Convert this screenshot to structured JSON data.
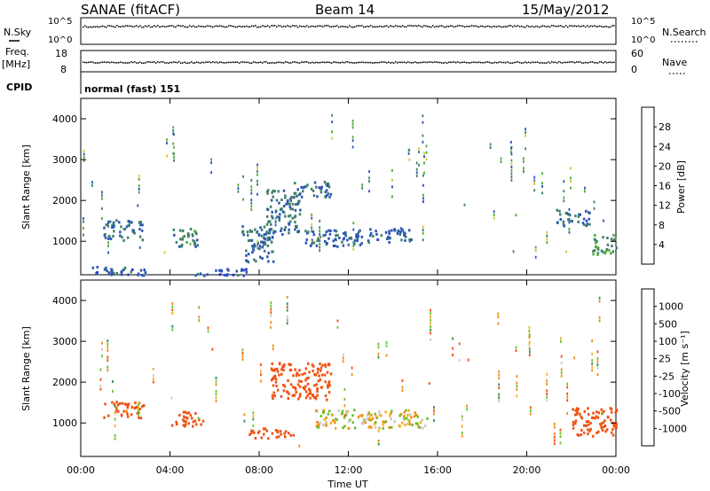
{
  "header": {
    "station": "SANAE (fitACF)",
    "beam": "Beam 14",
    "date": "15/May/2012"
  },
  "top_panels": {
    "nsky_label": "N.Sky",
    "nsky_ticks": [
      "10^5",
      "10^0"
    ],
    "nsearch_label": "N.Search",
    "nsearch_ticks": [
      "10^5",
      "10^0"
    ],
    "freq_label": "Freq.",
    "freq_unit": "[MHz]",
    "freq_ticks": [
      "18",
      "8"
    ],
    "nave_label": "Nave",
    "nave_ticks": [
      "60",
      "0"
    ],
    "cpid_label": "CPID",
    "cpid_value": "normal (fast) 151"
  },
  "colors": {
    "power": [
      "#1f2ad8",
      "#2a55b8",
      "#3f7f6a",
      "#4faa3a",
      "#d8c42a",
      "#f2a014",
      "#ef6a10",
      "#e23212"
    ],
    "velocity": [
      "#e01818",
      "#f05010",
      "#f28a10",
      "#f2b020",
      "#c8c8c8",
      "#c0c0c0",
      "#6cc030",
      "#3c8a48",
      "#3060b0",
      "#2030c0"
    ]
  },
  "chart_data": [
    {
      "type": "heatmap",
      "title": "",
      "ylabel": "Slant Range [km]",
      "xlabel": "",
      "xlim": [
        "00:00",
        "24:00"
      ],
      "ylim": [
        180,
        4500
      ],
      "yticks": [
        "1000",
        "2000",
        "3000",
        "4000"
      ],
      "xticks": [
        "00:00",
        "04:00",
        "08:00",
        "12:00",
        "16:00",
        "20:00",
        "00:00"
      ],
      "colorbar": {
        "label": "Power [dB]",
        "ticks": [
          "4",
          "8",
          "12",
          "16",
          "20",
          "24",
          "28"
        ],
        "range": [
          0,
          30
        ]
      },
      "echo_regions": [
        {
          "t0": 0.5,
          "t1": 3.0,
          "r0": 180,
          "r1": 400,
          "value": 6
        },
        {
          "t0": 1.0,
          "t1": 2.8,
          "r0": 1050,
          "r1": 1550,
          "value": 8
        },
        {
          "t0": 4.0,
          "t1": 5.2,
          "r0": 900,
          "r1": 1350,
          "value": 10
        },
        {
          "t0": 5.0,
          "t1": 7.5,
          "r0": 180,
          "r1": 350,
          "value": 6
        },
        {
          "t0": 7.2,
          "t1": 8.6,
          "r0": 500,
          "r1": 1400,
          "value": 8
        },
        {
          "t0": 8.3,
          "t1": 9.8,
          "r0": 1200,
          "r1": 2300,
          "value": 9
        },
        {
          "t0": 9.5,
          "t1": 11.2,
          "r0": 2100,
          "r1": 2500,
          "value": 8
        },
        {
          "t0": 10.0,
          "t1": 12.6,
          "r0": 900,
          "r1": 1300,
          "value": 7
        },
        {
          "t0": 12.3,
          "t1": 14.8,
          "r0": 1000,
          "r1": 1350,
          "value": 7
        },
        {
          "t0": 21.3,
          "t1": 22.8,
          "r0": 1400,
          "r1": 1800,
          "value": 8
        },
        {
          "t0": 22.8,
          "t1": 24.0,
          "r0": 700,
          "r1": 1200,
          "value": 12
        }
      ]
    },
    {
      "type": "heatmap",
      "title": "",
      "ylabel": "Slant Range [km]",
      "xlabel": "Time UT",
      "xlim": [
        "00:00",
        "24:00"
      ],
      "ylim": [
        180,
        4500
      ],
      "yticks": [
        "1000",
        "2000",
        "3000",
        "4000"
      ],
      "xticks": [
        "00:00",
        "04:00",
        "08:00",
        "12:00",
        "16:00",
        "20:00",
        "00:00"
      ],
      "colorbar": {
        "label": "Velocity [m s⁻¹]",
        "ticks": [
          "1000",
          "500",
          "100",
          "25",
          "-25",
          "-100",
          "-500",
          "-1000"
        ],
        "range": [
          -1000,
          1000
        ]
      },
      "echo_regions": [
        {
          "t0": 1.0,
          "t1": 2.8,
          "r0": 1150,
          "r1": 1550,
          "value": -150
        },
        {
          "t0": 4.0,
          "t1": 5.5,
          "r0": 950,
          "r1": 1300,
          "value": -300
        },
        {
          "t0": 7.5,
          "t1": 9.5,
          "r0": 650,
          "r1": 900,
          "value": -250
        },
        {
          "t0": 8.5,
          "t1": 11.2,
          "r0": 1600,
          "r1": 2500,
          "value": -300
        },
        {
          "t0": 10.5,
          "t1": 15.5,
          "r0": 900,
          "r1": 1350,
          "value": 0
        },
        {
          "t0": 22.0,
          "t1": 24.0,
          "r0": 700,
          "r1": 1400,
          "value": -200
        }
      ]
    }
  ]
}
